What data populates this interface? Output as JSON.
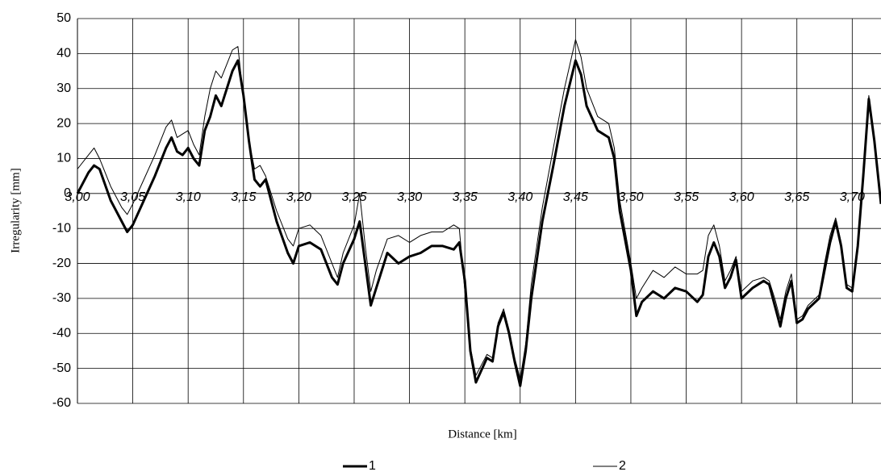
{
  "chart_data": {
    "type": "line",
    "y_label": "Irregularity [mm]",
    "x_label": "Distance [km]",
    "x": [
      3.0,
      3.01,
      3.015,
      3.02,
      3.03,
      3.04,
      3.045,
      3.05,
      3.06,
      3.07,
      3.08,
      3.085,
      3.09,
      3.095,
      3.1,
      3.105,
      3.11,
      3.115,
      3.12,
      3.125,
      3.13,
      3.135,
      3.14,
      3.145,
      3.15,
      3.155,
      3.16,
      3.165,
      3.17,
      3.18,
      3.19,
      3.195,
      3.2,
      3.21,
      3.22,
      3.23,
      3.235,
      3.24,
      3.25,
      3.255,
      3.26,
      3.265,
      3.27,
      3.28,
      3.29,
      3.3,
      3.31,
      3.32,
      3.33,
      3.34,
      3.345,
      3.35,
      3.355,
      3.36,
      3.37,
      3.375,
      3.38,
      3.385,
      3.39,
      3.395,
      3.4,
      3.405,
      3.41,
      3.42,
      3.43,
      3.44,
      3.45,
      3.455,
      3.46,
      3.47,
      3.48,
      3.485,
      3.49,
      3.5,
      3.505,
      3.51,
      3.52,
      3.53,
      3.54,
      3.55,
      3.56,
      3.565,
      3.57,
      3.575,
      3.58,
      3.585,
      3.59,
      3.595,
      3.6,
      3.61,
      3.62,
      3.625,
      3.63,
      3.635,
      3.64,
      3.645,
      3.65,
      3.655,
      3.66,
      3.67,
      3.675,
      3.68,
      3.685,
      3.69,
      3.695,
      3.7,
      3.705,
      3.71,
      3.715,
      3.72,
      3.726
    ],
    "series": [
      {
        "name": "1",
        "color": "#000000",
        "width": 3,
        "values": [
          0,
          6,
          8,
          7,
          -2,
          -8,
          -11,
          -9,
          -2,
          5,
          13,
          16,
          12,
          11,
          13,
          10,
          8,
          18,
          22,
          28,
          25,
          30,
          35,
          38,
          28,
          15,
          4,
          2,
          4,
          -8,
          -17,
          -20,
          -15,
          -14,
          -16,
          -24,
          -26,
          -20,
          -13,
          -8,
          -20,
          -32,
          -27,
          -17,
          -20,
          -18,
          -17,
          -15,
          -15,
          -16,
          -14,
          -25,
          -45,
          -54,
          -47,
          -48,
          -38,
          -34,
          -40,
          -48,
          -55,
          -45,
          -30,
          -8,
          8,
          25,
          38,
          34,
          25,
          18,
          16,
          10,
          -5,
          -22,
          -35,
          -31,
          -28,
          -30,
          -27,
          -28,
          -31,
          -29,
          -18,
          -14,
          -18,
          -27,
          -24,
          -19,
          -30,
          -27,
          -25,
          -26,
          -32,
          -38,
          -30,
          -25,
          -37,
          -36,
          -33,
          -30,
          -22,
          -14,
          -8,
          -15,
          -27,
          -28,
          -15,
          5,
          27,
          15,
          -3
        ]
      },
      {
        "name": "2",
        "color": "#000000",
        "width": 1,
        "values": [
          7,
          11,
          13,
          10,
          2,
          -4,
          -6,
          -3,
          4,
          11,
          19,
          21,
          16,
          17,
          18,
          14,
          11,
          22,
          30,
          35,
          33,
          37,
          41,
          42,
          27,
          15,
          7,
          8,
          5,
          -5,
          -13,
          -15,
          -10,
          -9,
          -12,
          -20,
          -24,
          -17,
          -9,
          0,
          -15,
          -28,
          -22,
          -13,
          -12,
          -14,
          -12,
          -11,
          -11,
          -9,
          -10,
          -28,
          -44,
          -52,
          -46,
          -47,
          -37,
          -33,
          -39,
          -47,
          -53,
          -43,
          -26,
          -4,
          13,
          30,
          44,
          39,
          30,
          22,
          20,
          13,
          -2,
          -20,
          -30,
          -27,
          -22,
          -24,
          -21,
          -23,
          -23,
          -22,
          -12,
          -9,
          -15,
          -25,
          -22,
          -18,
          -28,
          -25,
          -24,
          -25,
          -30,
          -36,
          -28,
          -23,
          -36,
          -35,
          -32,
          -29,
          -20,
          -12,
          -7,
          -14,
          -26,
          -27,
          -14,
          6,
          28,
          16,
          -2
        ]
      }
    ],
    "xlim": [
      3.0,
      3.726
    ],
    "xticks": [
      {
        "value": 3.0,
        "label": "3,00"
      },
      {
        "value": 3.05,
        "label": "3,05"
      },
      {
        "value": 3.1,
        "label": "3,10"
      },
      {
        "value": 3.15,
        "label": "3,15"
      },
      {
        "value": 3.2,
        "label": "3,20"
      },
      {
        "value": 3.25,
        "label": "3,25"
      },
      {
        "value": 3.3,
        "label": "3,30"
      },
      {
        "value": 3.35,
        "label": "3,35"
      },
      {
        "value": 3.4,
        "label": "3,40"
      },
      {
        "value": 3.45,
        "label": "3,45"
      },
      {
        "value": 3.5,
        "label": "3,50"
      },
      {
        "value": 3.55,
        "label": "3,55"
      },
      {
        "value": 3.6,
        "label": "3,60"
      },
      {
        "value": 3.65,
        "label": "3,65"
      },
      {
        "value": 3.7,
        "label": "3,70"
      }
    ],
    "ylim": [
      -60,
      50
    ],
    "yticks": [
      -60,
      -50,
      -40,
      -30,
      -20,
      -10,
      0,
      10,
      20,
      30,
      40,
      50
    ],
    "grid": true,
    "legend": "bottom"
  }
}
